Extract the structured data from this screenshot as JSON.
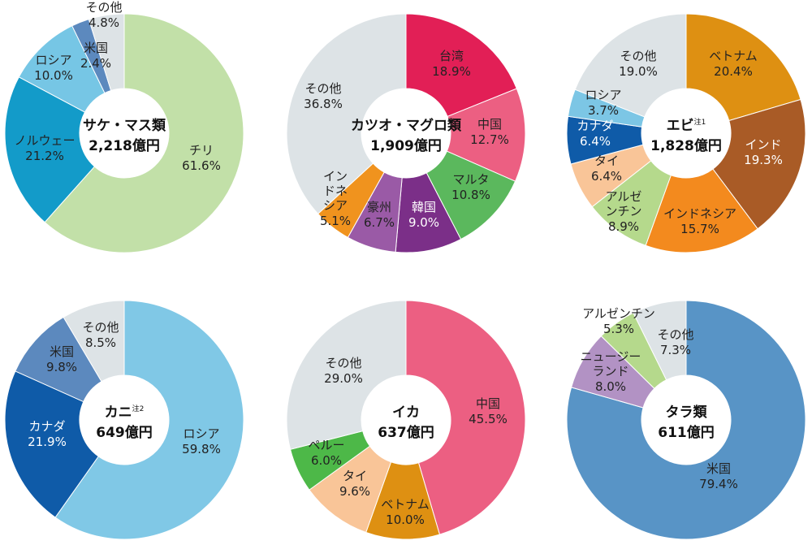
{
  "chart_data": [
    {
      "type": "pie",
      "center_title": "サケ・マス類",
      "center_value": "2,218億円",
      "center_note": "",
      "slices": [
        {
          "name": "チリ",
          "pct": "61.6%",
          "value": 61.6,
          "color": "#c2e0a8",
          "label_color": "#222222"
        },
        {
          "name": "ノルウェー",
          "pct": "21.2%",
          "value": 21.2,
          "color": "#139bc9",
          "label_color": "#222222"
        },
        {
          "name": "ロシア",
          "pct": "10.0%",
          "value": 10.0,
          "color": "#76c6e5",
          "label_color": "#222222"
        },
        {
          "name": "米国",
          "pct": "2.4%",
          "value": 2.4,
          "color": "#5c89be",
          "label_color": "#222222"
        },
        {
          "name": "その他",
          "pct": "4.8%",
          "value": 4.8,
          "color": "#dde3e6",
          "label_color": "#222222"
        }
      ]
    },
    {
      "type": "pie",
      "center_title": "カツオ・マグロ類",
      "center_value": "1,909億円",
      "center_note": "",
      "slices": [
        {
          "name": "台湾",
          "pct": "18.9%",
          "value": 18.9,
          "color": "#e21f56",
          "label_color": "#222222"
        },
        {
          "name": "中国",
          "pct": "12.7%",
          "value": 12.7,
          "color": "#ec5f82",
          "label_color": "#222222"
        },
        {
          "name": "マルタ",
          "pct": "10.8%",
          "value": 10.8,
          "color": "#5bb85d",
          "label_color": "#222222"
        },
        {
          "name": "韓国",
          "pct": "9.0%",
          "value": 9.0,
          "color": "#7b2f88",
          "label_color": "#ffffff"
        },
        {
          "name": "豪州",
          "pct": "6.7%",
          "value": 6.7,
          "color": "#9a5aa6",
          "label_color": "#222222"
        },
        {
          "name": "インドネシア",
          "pct": "5.1%",
          "value": 5.1,
          "color": "#f0931e",
          "label_color": "#222222"
        },
        {
          "name": "その他",
          "pct": "36.8%",
          "value": 36.8,
          "color": "#dde3e6",
          "label_color": "#222222"
        }
      ]
    },
    {
      "type": "pie",
      "center_title": "エビ",
      "center_value": "1,828億円",
      "center_note": "注1",
      "slices": [
        {
          "name": "ベトナム",
          "pct": "20.4%",
          "value": 20.4,
          "color": "#de9012",
          "label_color": "#222222"
        },
        {
          "name": "インド",
          "pct": "19.3%",
          "value": 19.3,
          "color": "#a95b26",
          "label_color": "#ffffff"
        },
        {
          "name": "インドネシア",
          "pct": "15.7%",
          "value": 15.7,
          "color": "#f38a1e",
          "label_color": "#222222"
        },
        {
          "name": "アルゼンチン",
          "pct": "8.9%",
          "value": 8.9,
          "color": "#b5d98c",
          "label_color": "#222222"
        },
        {
          "name": "タイ",
          "pct": "6.4%",
          "value": 6.4,
          "color": "#f9c598",
          "label_color": "#222222"
        },
        {
          "name": "カナダ",
          "pct": "6.4%",
          "value": 6.4,
          "color": "#0f5ba8",
          "label_color": "#ffffff"
        },
        {
          "name": "ロシア",
          "pct": "3.7%",
          "value": 3.7,
          "color": "#7cc6e5",
          "label_color": "#222222"
        },
        {
          "name": "その他",
          "pct": "19.0%",
          "value": 19.0,
          "color": "#dde3e6",
          "label_color": "#222222"
        }
      ]
    },
    {
      "type": "pie",
      "center_title": "カニ",
      "center_value": "649億円",
      "center_note": "注2",
      "slices": [
        {
          "name": "ロシア",
          "pct": "59.8%",
          "value": 59.8,
          "color": "#80c8e6",
          "label_color": "#222222"
        },
        {
          "name": "カナダ",
          "pct": "21.9%",
          "value": 21.9,
          "color": "#0f5ba8",
          "label_color": "#ffffff"
        },
        {
          "name": "米国",
          "pct": "9.8%",
          "value": 9.8,
          "color": "#5c89be",
          "label_color": "#222222"
        },
        {
          "name": "その他",
          "pct": "8.5%",
          "value": 8.5,
          "color": "#dde3e6",
          "label_color": "#222222"
        }
      ]
    },
    {
      "type": "pie",
      "center_title": "イカ",
      "center_value": "637億円",
      "center_note": "",
      "slices": [
        {
          "name": "中国",
          "pct": "45.5%",
          "value": 45.5,
          "color": "#ec5f82",
          "label_color": "#222222"
        },
        {
          "name": "ベトナム",
          "pct": "10.0%",
          "value": 10.0,
          "color": "#de9012",
          "label_color": "#222222"
        },
        {
          "name": "タイ",
          "pct": "9.6%",
          "value": 9.6,
          "color": "#f9c598",
          "label_color": "#222222"
        },
        {
          "name": "ペルー",
          "pct": "6.0%",
          "value": 6.0,
          "color": "#4db848",
          "label_color": "#222222"
        },
        {
          "name": "その他",
          "pct": "29.0%",
          "value": 29.0,
          "color": "#dde3e6",
          "label_color": "#222222"
        }
      ]
    },
    {
      "type": "pie",
      "center_title": "タラ類",
      "center_value": "611億円",
      "center_note": "",
      "slices": [
        {
          "name": "米国",
          "pct": "79.4%",
          "value": 79.4,
          "color": "#5894c6",
          "label_color": "#222222"
        },
        {
          "name": "ニュージーランド",
          "pct": "8.0%",
          "value": 8.0,
          "color": "#b292c4",
          "label_color": "#222222"
        },
        {
          "name": "アルゼンチン",
          "pct": "5.3%",
          "value": 5.3,
          "color": "#b5d98c",
          "label_color": "#222222"
        },
        {
          "name": "その他",
          "pct": "7.3%",
          "value": 7.3,
          "color": "#dde3e6",
          "label_color": "#222222"
        }
      ]
    }
  ]
}
